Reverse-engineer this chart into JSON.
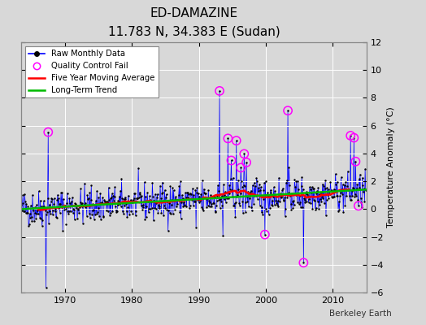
{
  "title": "ED-DAMAZINE",
  "subtitle": "11.783 N, 34.383 E (Sudan)",
  "ylabel": "Temperature Anomaly (°C)",
  "watermark": "Berkeley Earth",
  "xlim": [
    1963.5,
    2015.0
  ],
  "ylim": [
    -6,
    12
  ],
  "yticks": [
    -6,
    -4,
    -2,
    0,
    2,
    4,
    6,
    8,
    10,
    12
  ],
  "xticks": [
    1970,
    1980,
    1990,
    2000,
    2010
  ],
  "background_color": "#d8d8d8",
  "plot_bg_color": "#d8d8d8",
  "grid_color": "#ffffff",
  "raw_line_color": "#0000ff",
  "raw_dot_color": "#000000",
  "moving_avg_color": "#ff0000",
  "trend_color": "#00bb00",
  "qc_fail_color": "#ff00ff",
  "seed": 42,
  "title_fontsize": 11,
  "subtitle_fontsize": 9,
  "tick_fontsize": 8,
  "ylabel_fontsize": 8
}
